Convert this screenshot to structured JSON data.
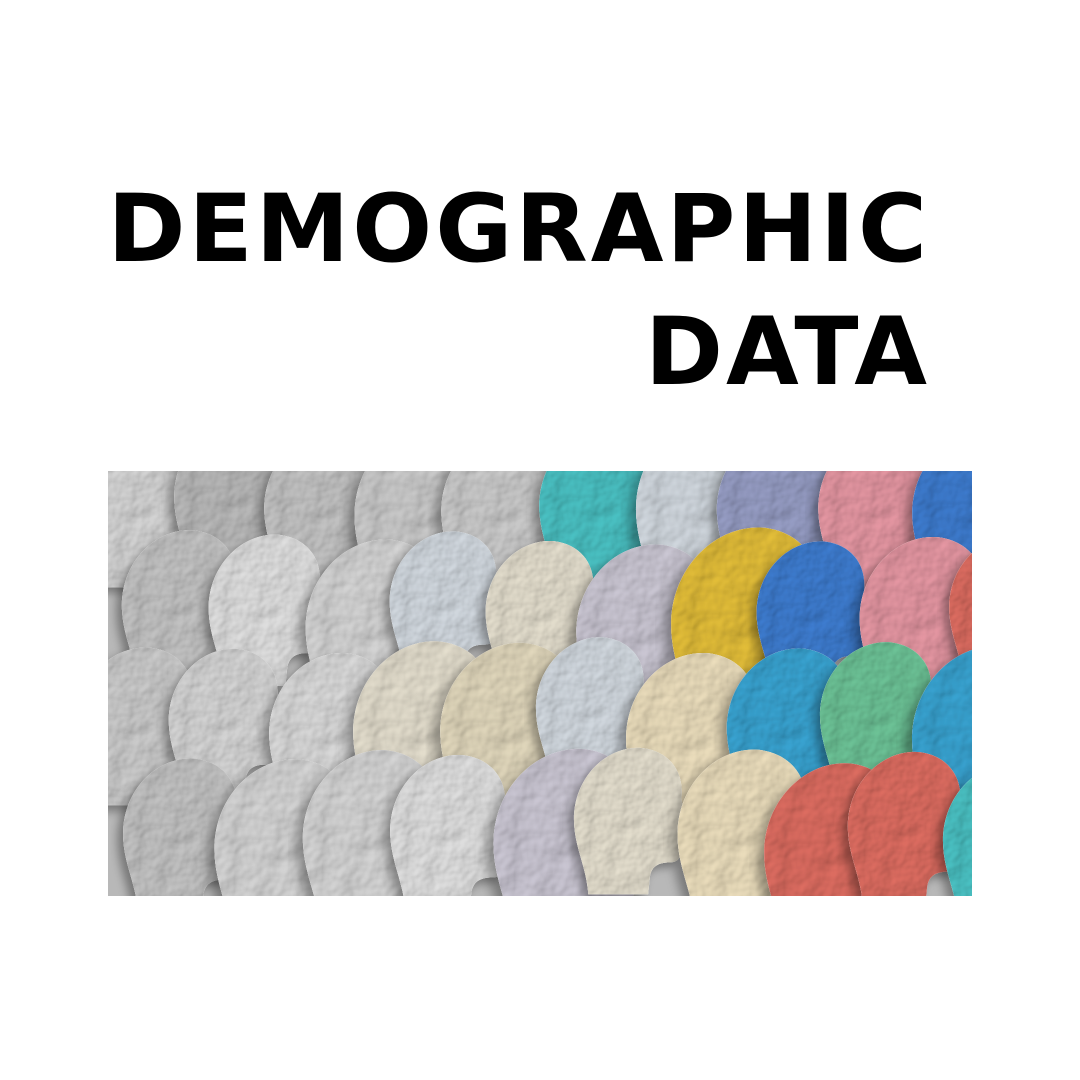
{
  "title": {
    "line1": "DEMOGRAPHIC",
    "line2": "DATA"
  },
  "illustration": {
    "subject": "rows of crumpled-paper human head profiles in side view, facing right, grey on the left transitioning to many colors on the right",
    "palette": {
      "paper_grey": [
        "#d9d9d9",
        "#cfcfcf",
        "#e4e4e4",
        "#c7c7c7",
        "#bdbdbd",
        "#dedede"
      ],
      "colors": [
        "#d7383d",
        "#f0e2c0",
        "#b9c9d6",
        "#8f63c7",
        "#6fc79a",
        "#3aa7d6",
        "#e8c23a",
        "#e07a32",
        "#3f7fd4",
        "#ea9aa6",
        "#4cc6c8",
        "#9aa1c9",
        "#b9c8bf",
        "#e26f63"
      ]
    }
  }
}
